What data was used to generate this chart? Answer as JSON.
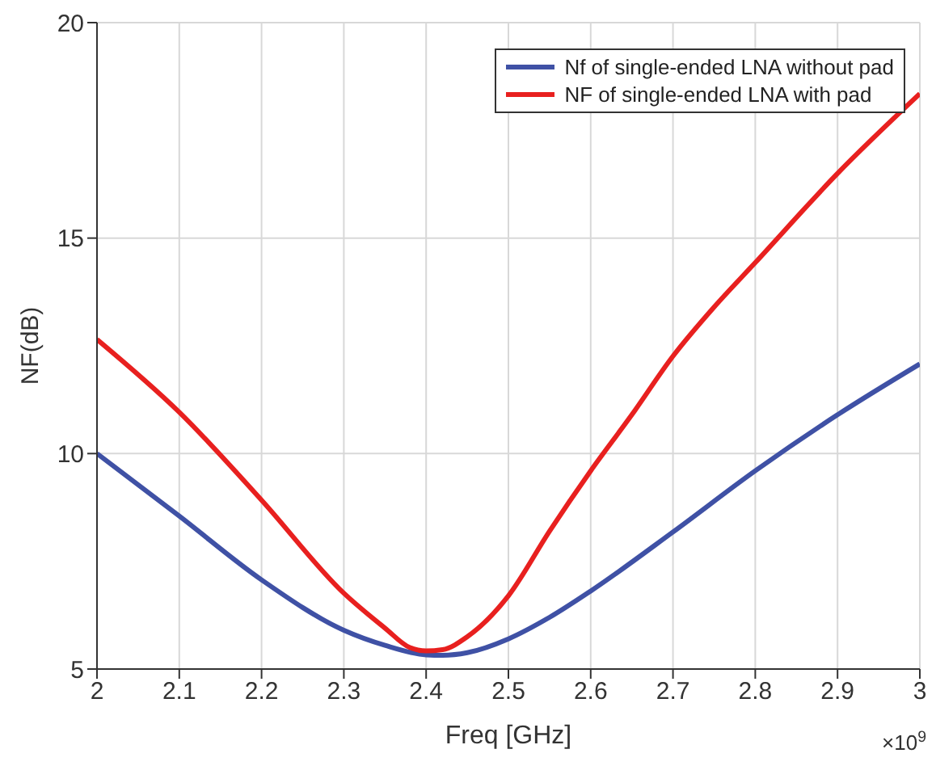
{
  "chart_data": {
    "type": "line",
    "xlabel": "Freq [GHz]",
    "ylabel": "NF(dB)",
    "xlim": [
      2,
      3
    ],
    "xticks": [
      2,
      2.1,
      2.2,
      2.3,
      2.4,
      2.5,
      2.6,
      2.7,
      2.8,
      2.9,
      3
    ],
    "ylim": [
      5,
      20
    ],
    "yticks": [
      5,
      10,
      15,
      20
    ],
    "grid": true,
    "legend": "top right",
    "marker": "none",
    "line_style": "solid",
    "annotations": [
      "×10$^{9}$"
    ],
    "series": [
      {
        "name": "Nf of single-ended LNA without pad",
        "color": "#3f51a5",
        "x": [
          2,
          2.1,
          2.2,
          2.3,
          2.35,
          2.4,
          2.42,
          2.45,
          2.5,
          2.55,
          2.6,
          2.7,
          2.8,
          2.9,
          3
        ],
        "values": [
          10,
          8.55,
          7.07,
          5.9,
          5.55,
          5.33,
          5.32,
          5.38,
          5.7,
          6.2,
          6.81,
          8.18,
          9.6,
          10.9,
          12.08
        ]
      },
      {
        "name": "NF of single-ended LNA with pad",
        "color": "#e8201f",
        "x": [
          2,
          2.1,
          2.2,
          2.3,
          2.35,
          2.38,
          2.4,
          2.42,
          2.45,
          2.5,
          2.55,
          2.6,
          2.65,
          2.7,
          2.75,
          2.8,
          2.9,
          3
        ],
        "values": [
          12.65,
          10.96,
          8.92,
          6.76,
          5.95,
          5.5,
          5.42,
          5.45,
          5.75,
          6.7,
          8.2,
          9.6,
          10.9,
          12.26,
          13.4,
          14.43,
          16.5,
          18.35
        ]
      }
    ]
  }
}
